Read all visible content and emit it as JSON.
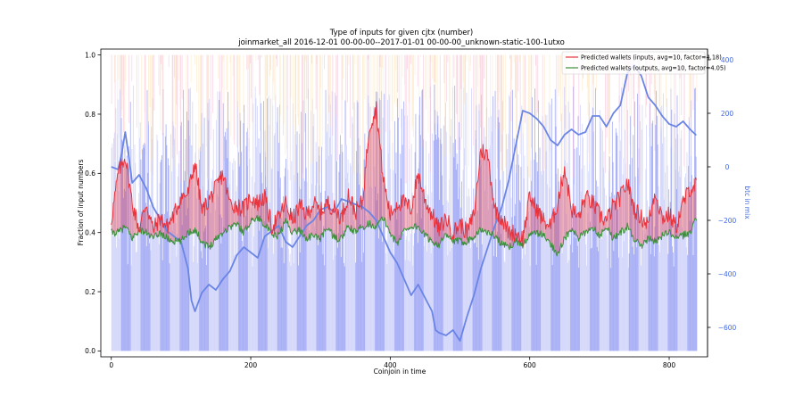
{
  "chart_data": {
    "type": "line",
    "title": "Type of inputs for given cjtx (number)",
    "subtitle": "joinmarket_all 2016-12-01 00-00-00--2017-01-01 00-00-00_unknown-static-100-1utxo",
    "xlabel": "Coinjoin in time",
    "ylabel": "Fraction of input numbers",
    "y2label": "btc in mix",
    "xlim": [
      -15,
      855
    ],
    "ylim": [
      -0.02,
      1.02
    ],
    "y2lim": [
      -710,
      440
    ],
    "x_ticks": [
      0,
      200,
      400,
      600,
      800
    ],
    "y_ticks": [
      0.0,
      0.2,
      0.4,
      0.6,
      0.8,
      1.0
    ],
    "y2_ticks": [
      400,
      200,
      0,
      -200,
      -400,
      -600
    ],
    "grid": false,
    "legend_position": "top-right",
    "n_points": 840,
    "series": [
      {
        "name": "Predicted wallets (inputs, avg=10, factor=4.18)",
        "color": "#e8323c",
        "x_y": [
          [
            0,
            0.44
          ],
          [
            10,
            0.6
          ],
          [
            20,
            0.66
          ],
          [
            30,
            0.5
          ],
          [
            40,
            0.41
          ],
          [
            50,
            0.5
          ],
          [
            60,
            0.41
          ],
          [
            70,
            0.45
          ],
          [
            80,
            0.42
          ],
          [
            90,
            0.46
          ],
          [
            100,
            0.52
          ],
          [
            110,
            0.53
          ],
          [
            120,
            0.64
          ],
          [
            130,
            0.47
          ],
          [
            140,
            0.51
          ],
          [
            150,
            0.55
          ],
          [
            160,
            0.6
          ],
          [
            170,
            0.5
          ],
          [
            180,
            0.49
          ],
          [
            190,
            0.48
          ],
          [
            200,
            0.52
          ],
          [
            210,
            0.5
          ],
          [
            220,
            0.52
          ],
          [
            230,
            0.42
          ],
          [
            240,
            0.45
          ],
          [
            250,
            0.5
          ],
          [
            260,
            0.44
          ],
          [
            270,
            0.49
          ],
          [
            280,
            0.46
          ],
          [
            290,
            0.5
          ],
          [
            300,
            0.47
          ],
          [
            310,
            0.5
          ],
          [
            320,
            0.48
          ],
          [
            330,
            0.45
          ],
          [
            340,
            0.53
          ],
          [
            350,
            0.47
          ],
          [
            360,
            0.5
          ],
          [
            370,
            0.76
          ],
          [
            380,
            0.82
          ],
          [
            390,
            0.58
          ],
          [
            400,
            0.46
          ],
          [
            410,
            0.5
          ],
          [
            420,
            0.5
          ],
          [
            430,
            0.48
          ],
          [
            440,
            0.6
          ],
          [
            450,
            0.51
          ],
          [
            460,
            0.46
          ],
          [
            470,
            0.41
          ],
          [
            480,
            0.45
          ],
          [
            490,
            0.4
          ],
          [
            500,
            0.43
          ],
          [
            510,
            0.4
          ],
          [
            520,
            0.46
          ],
          [
            530,
            0.68
          ],
          [
            540,
            0.66
          ],
          [
            550,
            0.48
          ],
          [
            560,
            0.45
          ],
          [
            570,
            0.4
          ],
          [
            580,
            0.4
          ],
          [
            590,
            0.38
          ],
          [
            600,
            0.52
          ],
          [
            610,
            0.48
          ],
          [
            620,
            0.44
          ],
          [
            630,
            0.42
          ],
          [
            640,
            0.5
          ],
          [
            650,
            0.62
          ],
          [
            660,
            0.48
          ],
          [
            670,
            0.45
          ],
          [
            680,
            0.52
          ],
          [
            690,
            0.5
          ],
          [
            700,
            0.46
          ],
          [
            710,
            0.44
          ],
          [
            720,
            0.49
          ],
          [
            730,
            0.52
          ],
          [
            740,
            0.57
          ],
          [
            750,
            0.48
          ],
          [
            760,
            0.45
          ],
          [
            770,
            0.43
          ],
          [
            780,
            0.54
          ],
          [
            790,
            0.45
          ],
          [
            800,
            0.46
          ],
          [
            810,
            0.42
          ],
          [
            820,
            0.5
          ],
          [
            830,
            0.55
          ],
          [
            838,
            0.56
          ]
        ]
      },
      {
        "name": "Predicted wallets (outputs, avg=10, factor=4.05)",
        "color": "#3b8f3b",
        "x_y": [
          [
            0,
            0.4
          ],
          [
            10,
            0.4
          ],
          [
            20,
            0.42
          ],
          [
            30,
            0.38
          ],
          [
            40,
            0.41
          ],
          [
            50,
            0.4
          ],
          [
            60,
            0.38
          ],
          [
            70,
            0.4
          ],
          [
            80,
            0.38
          ],
          [
            90,
            0.37
          ],
          [
            100,
            0.37
          ],
          [
            110,
            0.4
          ],
          [
            120,
            0.41
          ],
          [
            130,
            0.37
          ],
          [
            140,
            0.35
          ],
          [
            150,
            0.38
          ],
          [
            160,
            0.4
          ],
          [
            170,
            0.42
          ],
          [
            180,
            0.43
          ],
          [
            190,
            0.4
          ],
          [
            200,
            0.44
          ],
          [
            210,
            0.45
          ],
          [
            220,
            0.43
          ],
          [
            230,
            0.39
          ],
          [
            240,
            0.39
          ],
          [
            250,
            0.44
          ],
          [
            260,
            0.4
          ],
          [
            270,
            0.41
          ],
          [
            280,
            0.38
          ],
          [
            290,
            0.39
          ],
          [
            300,
            0.38
          ],
          [
            310,
            0.42
          ],
          [
            320,
            0.38
          ],
          [
            330,
            0.38
          ],
          [
            340,
            0.42
          ],
          [
            350,
            0.4
          ],
          [
            360,
            0.42
          ],
          [
            370,
            0.43
          ],
          [
            380,
            0.42
          ],
          [
            390,
            0.45
          ],
          [
            400,
            0.4
          ],
          [
            410,
            0.36
          ],
          [
            420,
            0.41
          ],
          [
            430,
            0.42
          ],
          [
            440,
            0.42
          ],
          [
            450,
            0.39
          ],
          [
            460,
            0.37
          ],
          [
            470,
            0.36
          ],
          [
            480,
            0.39
          ],
          [
            490,
            0.37
          ],
          [
            500,
            0.37
          ],
          [
            510,
            0.37
          ],
          [
            520,
            0.39
          ],
          [
            530,
            0.41
          ],
          [
            540,
            0.4
          ],
          [
            550,
            0.39
          ],
          [
            560,
            0.36
          ],
          [
            570,
            0.35
          ],
          [
            580,
            0.37
          ],
          [
            590,
            0.36
          ],
          [
            600,
            0.39
          ],
          [
            610,
            0.4
          ],
          [
            620,
            0.39
          ],
          [
            630,
            0.36
          ],
          [
            640,
            0.33
          ],
          [
            650,
            0.38
          ],
          [
            660,
            0.41
          ],
          [
            670,
            0.38
          ],
          [
            680,
            0.4
          ],
          [
            690,
            0.42
          ],
          [
            700,
            0.39
          ],
          [
            710,
            0.42
          ],
          [
            720,
            0.38
          ],
          [
            730,
            0.4
          ],
          [
            740,
            0.42
          ],
          [
            750,
            0.38
          ],
          [
            760,
            0.35
          ],
          [
            770,
            0.38
          ],
          [
            780,
            0.37
          ],
          [
            790,
            0.39
          ],
          [
            800,
            0.4
          ],
          [
            810,
            0.38
          ],
          [
            820,
            0.39
          ],
          [
            830,
            0.4
          ],
          [
            838,
            0.45
          ]
        ]
      },
      {
        "color": "#6a85e6",
        "axis": "right",
        "x_y": [
          [
            0,
            0
          ],
          [
            10,
            -10
          ],
          [
            15,
            50
          ],
          [
            20,
            130
          ],
          [
            25,
            40
          ],
          [
            30,
            -60
          ],
          [
            40,
            -30
          ],
          [
            50,
            -80
          ],
          [
            60,
            -150
          ],
          [
            80,
            -240
          ],
          [
            100,
            -280
          ],
          [
            110,
            -380
          ],
          [
            115,
            -500
          ],
          [
            120,
            -540
          ],
          [
            130,
            -470
          ],
          [
            140,
            -440
          ],
          [
            150,
            -460
          ],
          [
            160,
            -420
          ],
          [
            170,
            -390
          ],
          [
            180,
            -330
          ],
          [
            190,
            -300
          ],
          [
            200,
            -320
          ],
          [
            210,
            -340
          ],
          [
            220,
            -260
          ],
          [
            230,
            -240
          ],
          [
            240,
            -220
          ],
          [
            250,
            -280
          ],
          [
            260,
            -300
          ],
          [
            270,
            -260
          ],
          [
            280,
            -220
          ],
          [
            290,
            -200
          ],
          [
            300,
            -160
          ],
          [
            310,
            -150
          ],
          [
            320,
            -170
          ],
          [
            330,
            -120
          ],
          [
            340,
            -130
          ],
          [
            350,
            -140
          ],
          [
            360,
            -150
          ],
          [
            370,
            -170
          ],
          [
            380,
            -200
          ],
          [
            390,
            -260
          ],
          [
            400,
            -320
          ],
          [
            410,
            -360
          ],
          [
            420,
            -420
          ],
          [
            430,
            -480
          ],
          [
            440,
            -440
          ],
          [
            450,
            -490
          ],
          [
            460,
            -540
          ],
          [
            465,
            -610
          ],
          [
            470,
            -620
          ],
          [
            480,
            -630
          ],
          [
            490,
            -610
          ],
          [
            495,
            -630
          ],
          [
            500,
            -650
          ],
          [
            510,
            -560
          ],
          [
            520,
            -480
          ],
          [
            530,
            -380
          ],
          [
            540,
            -300
          ],
          [
            550,
            -220
          ],
          [
            560,
            -150
          ],
          [
            570,
            -50
          ],
          [
            580,
            80
          ],
          [
            590,
            210
          ],
          [
            600,
            200
          ],
          [
            610,
            180
          ],
          [
            620,
            150
          ],
          [
            630,
            100
          ],
          [
            640,
            80
          ],
          [
            650,
            120
          ],
          [
            660,
            140
          ],
          [
            670,
            120
          ],
          [
            680,
            130
          ],
          [
            690,
            190
          ],
          [
            700,
            190
          ],
          [
            710,
            150
          ],
          [
            720,
            200
          ],
          [
            730,
            230
          ],
          [
            740,
            350
          ],
          [
            750,
            380
          ],
          [
            760,
            340
          ],
          [
            770,
            260
          ],
          [
            780,
            230
          ],
          [
            790,
            190
          ],
          [
            800,
            160
          ],
          [
            810,
            150
          ],
          [
            820,
            170
          ],
          [
            830,
            140
          ],
          [
            838,
            120
          ]
        ]
      }
    ]
  }
}
